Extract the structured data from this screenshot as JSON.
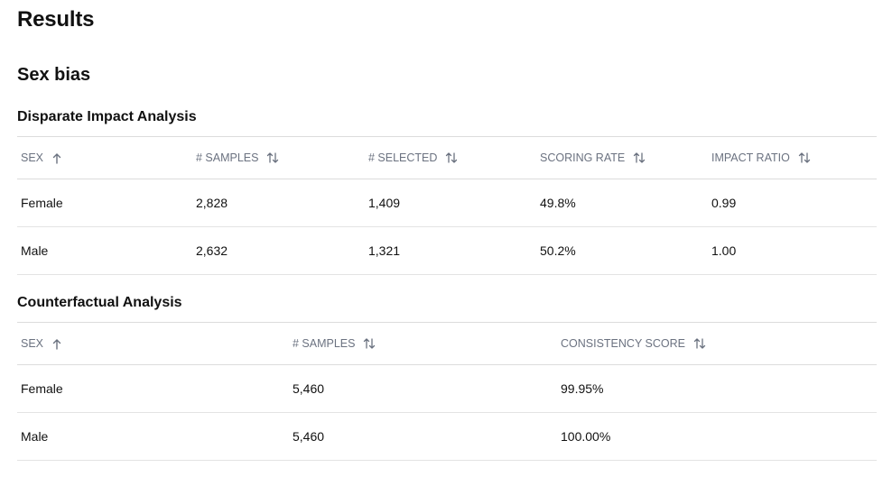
{
  "page": {
    "title": "Results",
    "section_title": "Sex bias"
  },
  "disparate": {
    "title": "Disparate Impact Analysis",
    "headers": [
      "SEX",
      "# SAMPLES",
      "# SELECTED",
      "SCORING RATE",
      "IMPACT RATIO"
    ],
    "rows": [
      [
        "Female",
        "2,828",
        "1,409",
        "49.8%",
        "0.99"
      ],
      [
        "Male",
        "2,632",
        "1,321",
        "50.2%",
        "1.00"
      ]
    ]
  },
  "counterfactual": {
    "title": "Counterfactual Analysis",
    "headers": [
      "SEX",
      "# SAMPLES",
      "CONSISTENCY SCORE"
    ],
    "rows": [
      [
        "Female",
        "5,460",
        "99.95%"
      ],
      [
        "Male",
        "5,460",
        "100.00%"
      ]
    ]
  }
}
